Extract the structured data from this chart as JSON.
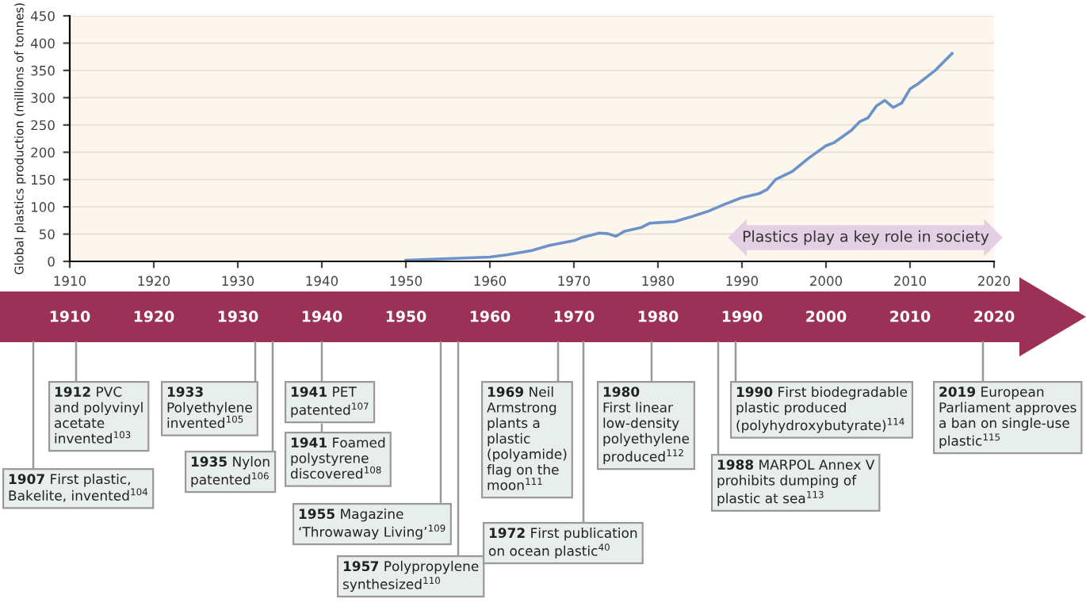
{
  "chart_data": {
    "type": "line",
    "ylabel": "Global plastics production (millions of tonnes)",
    "x": [
      1950,
      1955,
      1960,
      1962,
      1965,
      1967,
      1970,
      1971,
      1973,
      1974,
      1975,
      1976,
      1978,
      1979,
      1980,
      1982,
      1984,
      1986,
      1988,
      1990,
      1992,
      1993,
      1994,
      1996,
      1998,
      2000,
      2001,
      2003,
      2004,
      2005,
      2006,
      2007,
      2008,
      2009,
      2010,
      2011,
      2013,
      2015
    ],
    "series": [
      {
        "color": "#6b93c9",
        "values": [
          2,
          5,
          8,
          12,
          20,
          29,
          38,
          44,
          52,
          51,
          46,
          55,
          62,
          70,
          71,
          73,
          82,
          92,
          105,
          117,
          124,
          132,
          150,
          165,
          190,
          212,
          218,
          240,
          256,
          263,
          285,
          295,
          282,
          290,
          316,
          326,
          350,
          381
        ]
      }
    ],
    "xlim": [
      1910,
      2020
    ],
    "xticks": [
      1910,
      1920,
      1930,
      1940,
      1950,
      1960,
      1970,
      1980,
      1990,
      2000,
      2010,
      2020
    ],
    "x2lim": [
      1910,
      2020
    ],
    "x2ticks": [
      1910,
      1920,
      1930,
      1940,
      1950,
      1960,
      1970,
      1980,
      1990,
      2000,
      2010,
      2020
    ],
    "ylim": [
      0,
      450
    ],
    "yticks": [
      0,
      50,
      100,
      150,
      200,
      250,
      300,
      350,
      400,
      450
    ],
    "grid": "y",
    "line_style": "solid",
    "marker": "none",
    "annotations": [
      "Plastics play a key role in society",
      "1907 First plastic,\nBakelite, invented$^{104}$",
      "1912 PVC\nand polyvinyl\nacetate\ninvented$^{103}$",
      "1933\nPolyethylene\ninvented$^{105}$",
      "1935 Nylon\npatented$^{106}$",
      "1941 PET\npatented$^{107}$",
      "1941 Foamed\npolystyrene\ndiscovered$^{108}$",
      "1955 Magazine\n‘Throwaway Living’$^{109}$",
      "1957 Polypropylene\nsynthesized$^{110}$",
      "1969 Neil\nArmstrong\nplants a\nplastic\n(polyamide)\nflag on the\nmoon$^{111}$",
      "1972 First publication\non ocean plastic$^{40}$",
      "1980\nFirst linear\nlow-density\npolyethylene\nproduced$^{112}$",
      "1988 MARPOL Annex V\nprohibits dumping of\nplastic at sea$^{113}$",
      "1990 First biodegradable\nplastic produced\n(polyhydroxybutyrate)$^{114}$",
      "2019 European\nParliament approves\na ban on single-use\nplastic$^{115}$"
    ]
  }
}
